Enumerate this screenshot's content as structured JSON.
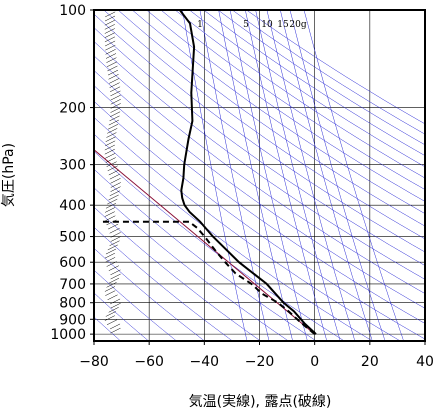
{
  "chart_data": {
    "type": "line",
    "title": "",
    "xlabel": "気温(実線), 露点(破線)",
    "ylabel": "気圧(hPa)",
    "xlim": [
      -80,
      40
    ],
    "ylim": [
      1050,
      100
    ],
    "y_scale": "log",
    "x_ticks": [
      "−80",
      "−60",
      "−40",
      "−20",
      "0",
      "20",
      "40"
    ],
    "y_ticks": [
      "100",
      "200",
      "300",
      "400",
      "500",
      "600",
      "700",
      "800",
      "900",
      "1000"
    ],
    "mixing_ratio_labels": [
      "1",
      "5",
      "10",
      "15",
      "20g"
    ],
    "series": [
      {
        "style": "solid",
        "points": [
          [
            1000,
            0.5
          ],
          [
            925,
            -4
          ],
          [
            850,
            -8
          ],
          [
            800,
            -12
          ],
          [
            700,
            -18.5
          ],
          [
            600,
            -29
          ],
          [
            500,
            -39
          ],
          [
            450,
            -44
          ],
          [
            420,
            -48
          ],
          [
            400,
            -50
          ],
          [
            380,
            -51
          ],
          [
            360,
            -51.5
          ],
          [
            330,
            -51
          ],
          [
            300,
            -51
          ],
          [
            250,
            -50
          ],
          [
            220,
            -49
          ],
          [
            180,
            -50
          ],
          [
            160,
            -50
          ],
          [
            130,
            -50
          ],
          [
            110,
            -52
          ],
          [
            100,
            -56
          ]
        ]
      },
      {
        "style": "dashed",
        "points": [
          [
            1000,
            0
          ],
          [
            925,
            -5
          ],
          [
            850,
            -10
          ],
          [
            800,
            -14
          ],
          [
            750,
            -20
          ],
          [
            700,
            -24
          ],
          [
            650,
            -30
          ],
          [
            600,
            -34
          ],
          [
            550,
            -38
          ],
          [
            500,
            -42
          ],
          [
            470,
            -45
          ],
          [
            450,
            -48
          ],
          [
            450,
            -65
          ],
          [
            450,
            -80
          ]
        ]
      }
    ],
    "grid": true
  }
}
